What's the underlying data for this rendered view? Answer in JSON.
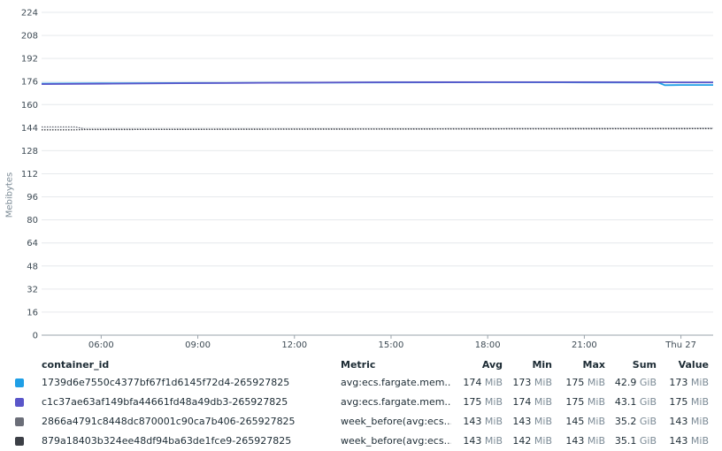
{
  "chart_data": {
    "type": "line",
    "ylabel": "Mebibytes",
    "ylim": [
      0,
      224
    ],
    "y_ticks": [
      "0",
      "16",
      "32",
      "48",
      "64",
      "80",
      "96",
      "112",
      "128",
      "144",
      "160",
      "176",
      "192",
      "208",
      "224"
    ],
    "x_ticks": [
      "06:00",
      "09:00",
      "12:00",
      "15:00",
      "18:00",
      "21:00",
      "Thu 27"
    ],
    "x_tick_hours": [
      6,
      9,
      12,
      15,
      18,
      21,
      24
    ],
    "x_range_hours": [
      4.15,
      25.0
    ],
    "grid": true,
    "series": [
      {
        "name": "1739d6e7550c4377bf67f1d6145f72d4-265927825",
        "color": "#1f9fe6",
        "style": "solid",
        "x": [
          4.15,
          6,
          9,
          12,
          15,
          18,
          21,
          23.3,
          23.5,
          24,
          25.0
        ],
        "y": [
          174.6,
          174.8,
          175.0,
          175.2,
          175.4,
          175.5,
          175.4,
          175.3,
          173.5,
          173.6,
          173.6
        ]
      },
      {
        "name": "c1c37ae63af149bfa44661fd48a49db3-265927825",
        "color": "#5a56c9",
        "style": "solid",
        "x": [
          4.15,
          6,
          9,
          12,
          15,
          18,
          21,
          23.3,
          24,
          25.0
        ],
        "y": [
          174.2,
          174.5,
          174.9,
          175.2,
          175.5,
          175.6,
          175.6,
          175.5,
          175.4,
          175.4
        ]
      },
      {
        "name": "2866a4791c8448dc870001c90ca7b406-265927825",
        "color": "#6b6e78",
        "style": "dotted",
        "x": [
          4.15,
          5.2,
          5.5,
          9,
          12,
          15,
          18,
          21,
          25.0
        ],
        "y": [
          144.5,
          144.5,
          143.0,
          143.0,
          143.1,
          143.2,
          143.3,
          143.4,
          143.5
        ]
      },
      {
        "name": "879a18403b324ee48df94ba63de1fce9-265927825",
        "color": "#3c3f46",
        "style": "dotted",
        "x": [
          4.15,
          5.2,
          5.5,
          9,
          12,
          15,
          18,
          21,
          25.0
        ],
        "y": [
          142.5,
          142.5,
          142.7,
          142.8,
          142.9,
          143.0,
          143.1,
          143.2,
          143.3
        ]
      }
    ]
  },
  "legend": {
    "headers": {
      "container_id": "container_id",
      "metric": "Metric",
      "avg": "Avg",
      "min": "Min",
      "max": "Max",
      "sum": "Sum",
      "value": "Value"
    },
    "rows": [
      {
        "color": "#1f9fe6",
        "container_id": "1739d6e7550c4377bf67f1d6145f72d4-265927825",
        "metric": "avg:ecs.fargate.mem....",
        "avg": "174",
        "avg_unit": "MiB",
        "min": "173",
        "min_unit": "MiB",
        "max": "175",
        "max_unit": "MiB",
        "sum": "42.9",
        "sum_unit": "GiB",
        "value": "173",
        "value_unit": "MiB"
      },
      {
        "color": "#5a56c9",
        "container_id": "c1c37ae63af149bfa44661fd48a49db3-265927825",
        "metric": "avg:ecs.fargate.mem....",
        "avg": "175",
        "avg_unit": "MiB",
        "min": "174",
        "min_unit": "MiB",
        "max": "175",
        "max_unit": "MiB",
        "sum": "43.1",
        "sum_unit": "GiB",
        "value": "175",
        "value_unit": "MiB"
      },
      {
        "color": "#6b6e78",
        "container_id": "2866a4791c8448dc870001c90ca7b406-265927825",
        "metric": "week_before(avg:ecs....",
        "avg": "143",
        "avg_unit": "MiB",
        "min": "143",
        "min_unit": "MiB",
        "max": "145",
        "max_unit": "MiB",
        "sum": "35.2",
        "sum_unit": "GiB",
        "value": "143",
        "value_unit": "MiB"
      },
      {
        "color": "#3c3f46",
        "container_id": "879a18403b324ee48df94ba63de1fce9-265927825",
        "metric": "week_before(avg:ecs....",
        "avg": "143",
        "avg_unit": "MiB",
        "min": "142",
        "min_unit": "MiB",
        "max": "143",
        "max_unit": "MiB",
        "sum": "35.1",
        "sum_unit": "GiB",
        "value": "143",
        "value_unit": "MiB"
      }
    ]
  }
}
